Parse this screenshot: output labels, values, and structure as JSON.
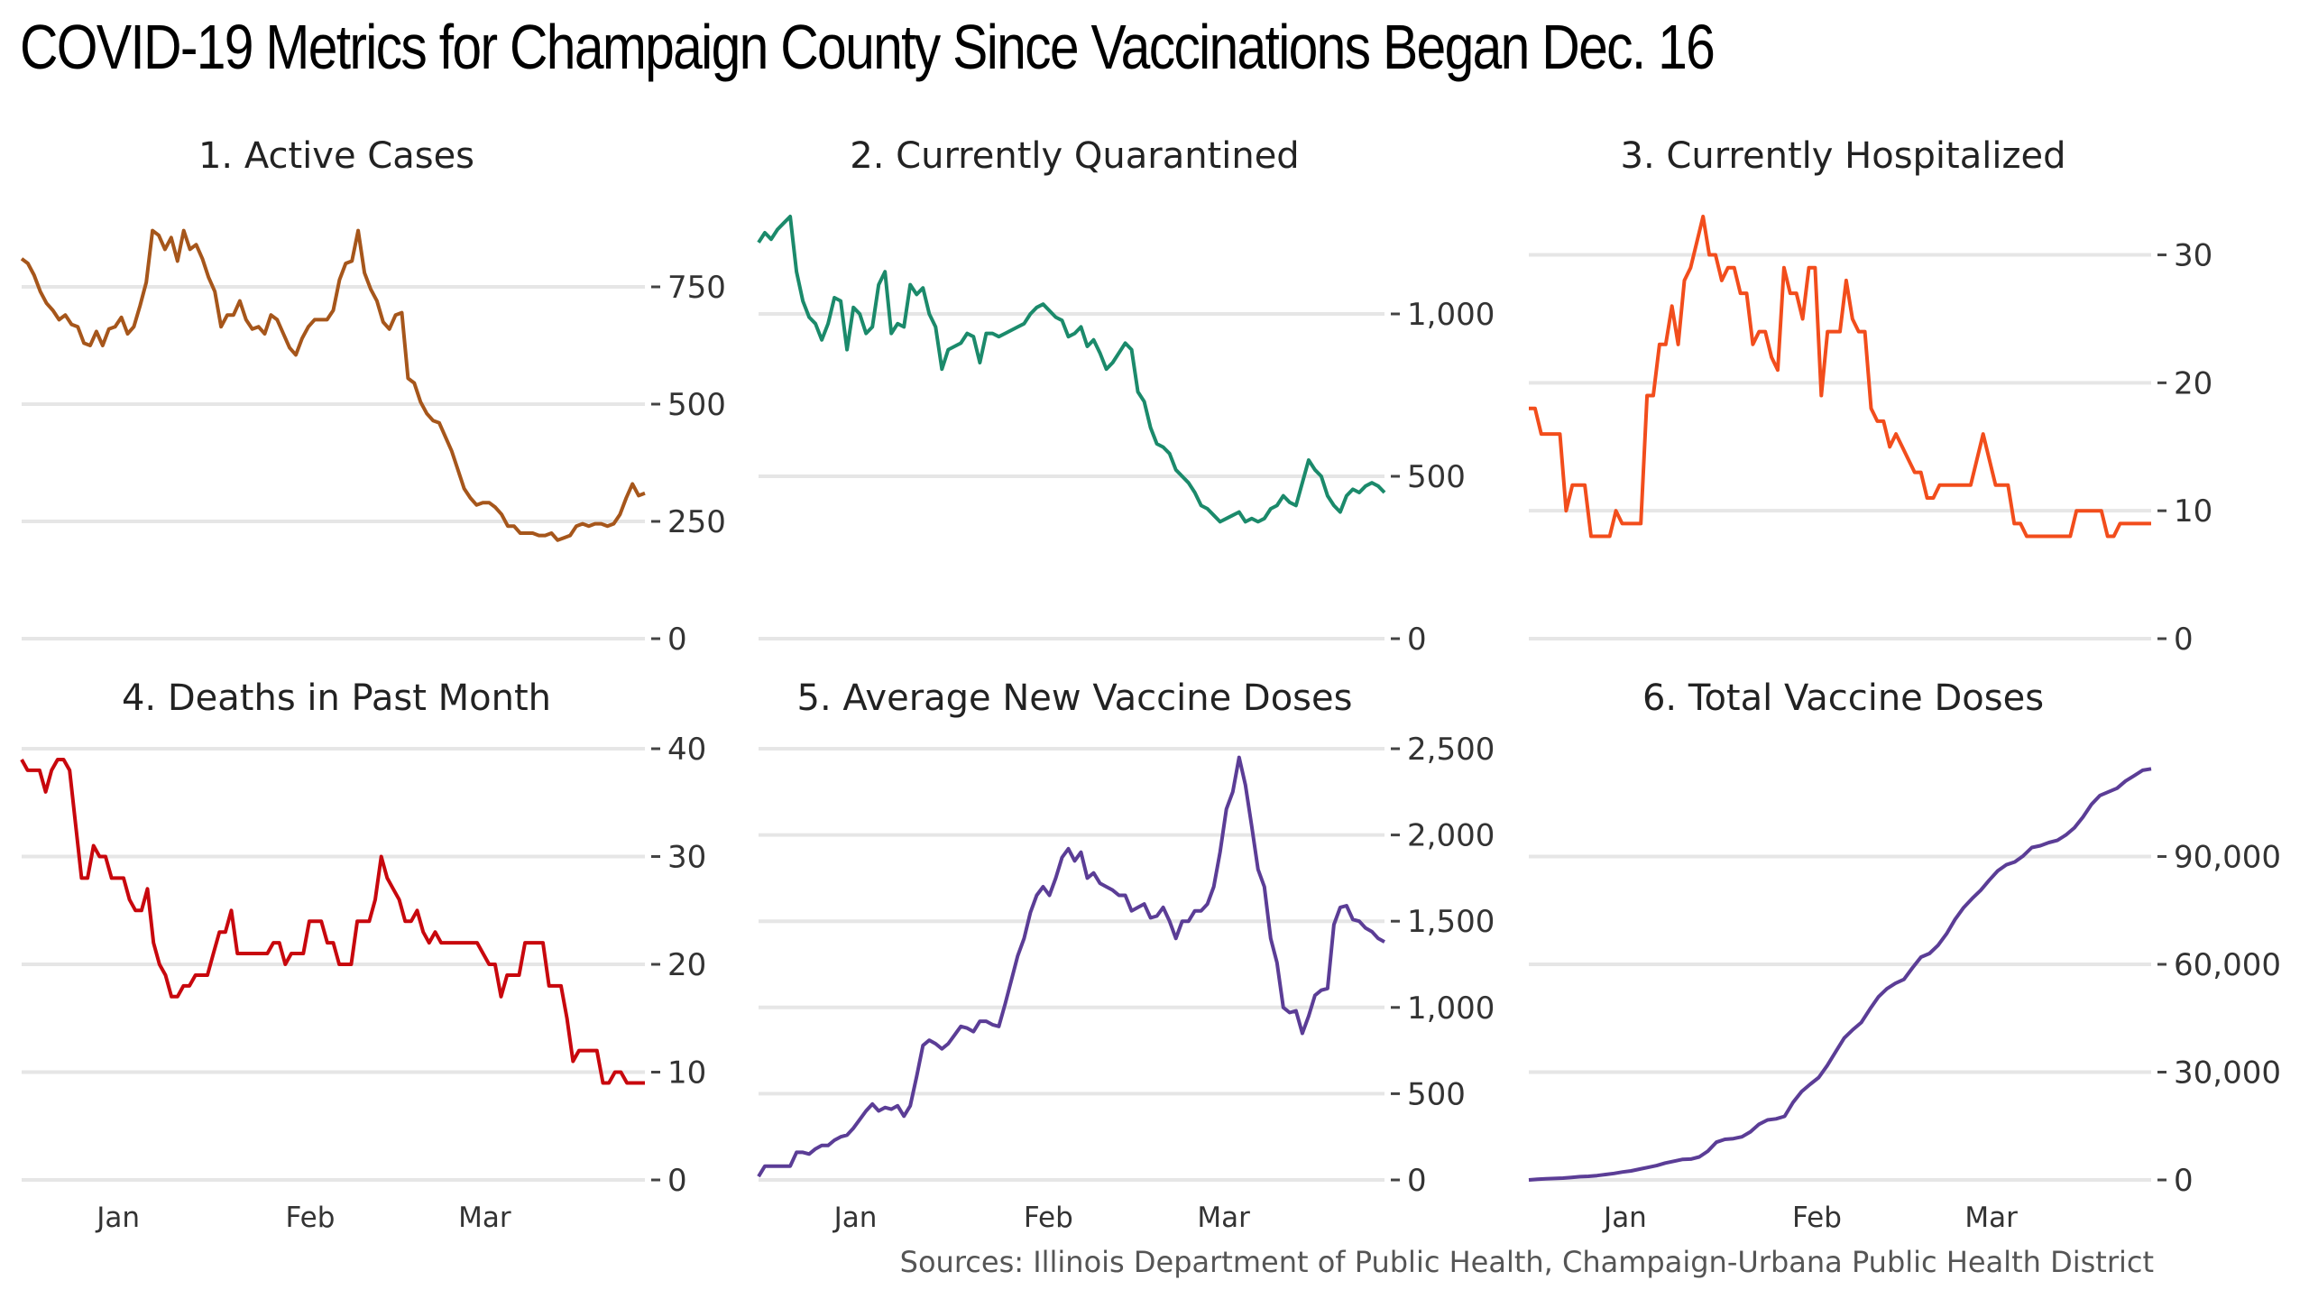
{
  "title": "COVID-19 Metrics for Champaign County Since Vaccinations Began Dec. 16",
  "source": "Sources: Illinois Department of Public Health, Champaign-Urbana Public Health District",
  "chart_data": [
    {
      "type": "line",
      "title": "1. Active Cases",
      "color": "#a6561b",
      "x_ticks": [
        "Jan",
        "Feb",
        "Mar"
      ],
      "show_x_ticks": false,
      "ylim": [
        0,
        900
      ],
      "y_ticks": [
        0,
        250,
        500,
        750
      ],
      "y_tick_labels": [
        "0",
        "250",
        "500",
        "750"
      ],
      "grid": true,
      "series": [
        {
          "values": [
            810,
            800,
            775,
            740,
            715,
            700,
            680,
            690,
            670,
            665,
            630,
            625,
            655,
            625,
            660,
            665,
            685,
            650,
            665,
            710,
            760,
            870,
            860,
            830,
            855,
            805,
            870,
            830,
            840,
            810,
            770,
            740,
            665,
            690,
            690,
            720,
            680,
            660,
            665,
            650,
            690,
            680,
            650,
            620,
            605,
            640,
            665,
            680,
            680,
            680,
            700,
            765,
            800,
            805,
            870,
            780,
            745,
            720,
            675,
            660,
            690,
            695,
            555,
            545,
            505,
            480,
            465,
            460,
            430,
            400,
            360,
            320,
            300,
            285,
            290,
            290,
            280,
            265,
            240,
            240,
            225,
            225,
            225,
            220,
            220,
            225,
            210,
            215,
            220,
            240,
            245,
            240,
            245,
            245,
            240,
            245,
            265,
            300,
            330,
            305,
            310
          ]
        }
      ]
    },
    {
      "type": "line",
      "title": "2. Currently Quarantined",
      "color": "#1b8a6b",
      "x_ticks": [
        "Jan",
        "Feb",
        "Mar"
      ],
      "show_x_ticks": false,
      "ylim": [
        0,
        1300
      ],
      "y_ticks": [
        0,
        500,
        1000
      ],
      "y_tick_labels": [
        "0",
        "500",
        "1,000"
      ],
      "grid": true,
      "series": [
        {
          "values": [
            1220,
            1250,
            1230,
            1260,
            1280,
            1300,
            1130,
            1040,
            990,
            970,
            920,
            970,
            1050,
            1040,
            890,
            1020,
            1000,
            940,
            960,
            1090,
            1130,
            940,
            970,
            960,
            1090,
            1060,
            1080,
            1000,
            960,
            830,
            890,
            900,
            910,
            940,
            930,
            850,
            940,
            940,
            930,
            940,
            950,
            960,
            970,
            1000,
            1020,
            1030,
            1010,
            990,
            980,
            930,
            940,
            960,
            900,
            920,
            880,
            830,
            850,
            880,
            910,
            890,
            760,
            730,
            650,
            600,
            590,
            570,
            520,
            500,
            480,
            450,
            410,
            400,
            380,
            360,
            370,
            380,
            390,
            360,
            370,
            360,
            370,
            400,
            410,
            440,
            420,
            410,
            480,
            550,
            520,
            500,
            440,
            410,
            390,
            440,
            460,
            450,
            470,
            480,
            470,
            450
          ]
        }
      ]
    },
    {
      "type": "line",
      "title": "3. Currently Hospitalized",
      "color": "#f24d1c",
      "x_ticks": [
        "Jan",
        "Feb",
        "Mar"
      ],
      "show_x_ticks": false,
      "ylim": [
        0,
        33
      ],
      "y_ticks": [
        0,
        10,
        20,
        30
      ],
      "y_tick_labels": [
        "0",
        "10",
        "20",
        "30"
      ],
      "grid": true,
      "series": [
        {
          "values": [
            18,
            18,
            16,
            16,
            16,
            16,
            10,
            12,
            12,
            12,
            8,
            8,
            8,
            8,
            10,
            9,
            9,
            9,
            9,
            19,
            19,
            23,
            23,
            26,
            23,
            28,
            29,
            31,
            33,
            30,
            30,
            28,
            29,
            29,
            27,
            27,
            23,
            24,
            24,
            22,
            21,
            29,
            27,
            27,
            25,
            29,
            29,
            19,
            24,
            24,
            24,
            28,
            25,
            24,
            24,
            18,
            17,
            17,
            15,
            16,
            15,
            14,
            13,
            13,
            11,
            11,
            12,
            12,
            12,
            12,
            12,
            12,
            14,
            16,
            14,
            12,
            12,
            12,
            9,
            9,
            8,
            8,
            8,
            8,
            8,
            8,
            8,
            8,
            10,
            10,
            10,
            10,
            10,
            8,
            8,
            9,
            9,
            9,
            9,
            9,
            9
          ]
        }
      ]
    },
    {
      "type": "line",
      "title": "4. Deaths in Past Month",
      "color": "#c8070d",
      "x_ticks": [
        "Jan",
        "Feb",
        "Mar"
      ],
      "show_x_ticks": true,
      "ylim": [
        0,
        40
      ],
      "y_ticks": [
        0,
        10,
        20,
        30,
        40
      ],
      "y_tick_labels": [
        "0",
        "10",
        "20",
        "30",
        "40"
      ],
      "grid": true,
      "series": [
        {
          "values": [
            39,
            38,
            38,
            38,
            36,
            38,
            39,
            39,
            38,
            33,
            28,
            28,
            31,
            30,
            30,
            28,
            28,
            28,
            26,
            25,
            25,
            27,
            22,
            20,
            19,
            17,
            17,
            18,
            18,
            19,
            19,
            19,
            21,
            23,
            23,
            25,
            21,
            21,
            21,
            21,
            21,
            21,
            22,
            22,
            20,
            21,
            21,
            21,
            24,
            24,
            24,
            22,
            22,
            20,
            20,
            20,
            24,
            24,
            24,
            26,
            30,
            28,
            27,
            26,
            24,
            24,
            25,
            23,
            22,
            23,
            22,
            22,
            22,
            22,
            22,
            22,
            22,
            21,
            20,
            20,
            17,
            19,
            19,
            19,
            22,
            22,
            22,
            22,
            18,
            18,
            18,
            15,
            11,
            12,
            12,
            12,
            12,
            9,
            9,
            10,
            10,
            9,
            9,
            9,
            9
          ]
        }
      ]
    },
    {
      "type": "line",
      "title": "5. Average New Vaccine Doses",
      "color": "#5b3d96",
      "x_ticks": [
        "Jan",
        "Feb",
        "Mar"
      ],
      "show_x_ticks": true,
      "ylim": [
        0,
        2500
      ],
      "y_ticks": [
        0,
        500,
        1000,
        1500,
        2000,
        2500
      ],
      "y_tick_labels": [
        "0",
        "500",
        "1,000",
        "1,500",
        "2,000",
        "2,500"
      ],
      "grid": true,
      "series": [
        {
          "values": [
            20,
            80,
            80,
            80,
            80,
            80,
            160,
            160,
            150,
            180,
            200,
            200,
            230,
            250,
            260,
            300,
            350,
            400,
            440,
            400,
            420,
            410,
            430,
            370,
            430,
            600,
            780,
            810,
            790,
            760,
            790,
            840,
            890,
            880,
            860,
            920,
            920,
            900,
            890,
            1020,
            1160,
            1300,
            1400,
            1550,
            1650,
            1700,
            1650,
            1750,
            1870,
            1920,
            1850,
            1900,
            1750,
            1780,
            1720,
            1700,
            1680,
            1650,
            1650,
            1560,
            1580,
            1600,
            1520,
            1530,
            1580,
            1500,
            1400,
            1500,
            1500,
            1560,
            1560,
            1600,
            1700,
            1900,
            2150,
            2250,
            2450,
            2290,
            2050,
            1800,
            1700,
            1400,
            1260,
            1000,
            970,
            980,
            850,
            950,
            1070,
            1100,
            1110,
            1480,
            1580,
            1590,
            1510,
            1500,
            1460,
            1440,
            1400,
            1380
          ]
        }
      ]
    },
    {
      "type": "line",
      "title": "6. Total Vaccine Doses",
      "color": "#5b3d96",
      "x_ticks": [
        "Jan",
        "Feb",
        "Mar"
      ],
      "show_x_ticks": true,
      "ylim": [
        0,
        120000
      ],
      "y_ticks": [
        0,
        30000,
        60000,
        90000
      ],
      "y_tick_labels": [
        "0",
        "30,000",
        "60,000",
        "90,000"
      ],
      "grid": true,
      "series": [
        {
          "values": [
            0,
            200,
            300,
            400,
            500,
            700,
            900,
            1000,
            1200,
            1500,
            1800,
            2200,
            2500,
            3000,
            3500,
            4000,
            4700,
            5200,
            5700,
            5800,
            6400,
            8000,
            10500,
            11300,
            11500,
            12000,
            13400,
            15500,
            16700,
            17000,
            17700,
            21600,
            24600,
            26600,
            28500,
            31800,
            35700,
            39500,
            41800,
            43800,
            47500,
            50900,
            53200,
            54700,
            55800,
            59000,
            62000,
            63000,
            65300,
            68500,
            72500,
            75800,
            78300,
            80600,
            83400,
            86000,
            87700,
            88500,
            90200,
            92500,
            93000,
            93900,
            94500,
            96000,
            98000,
            101000,
            104500,
            107000,
            108000,
            109000,
            111000,
            112500,
            114000,
            114400
          ]
        }
      ]
    }
  ]
}
